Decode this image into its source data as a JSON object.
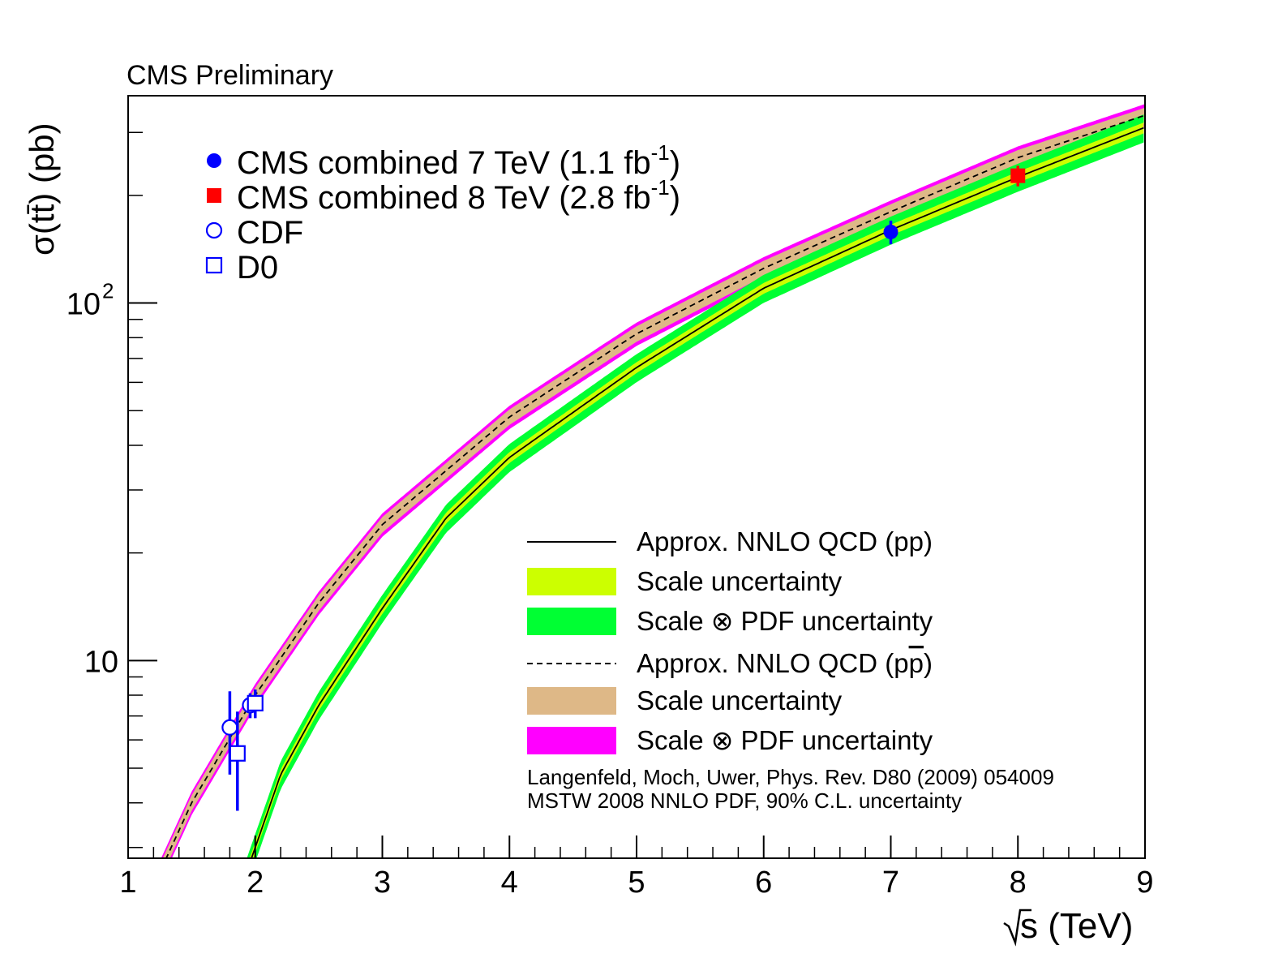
{
  "chart_data": {
    "type": "line",
    "title": "CMS Preliminary",
    "xlabel": "√s (TeV)",
    "ylabel": "σ(tt̄) (pb)",
    "xlim": [
      1,
      9
    ],
    "ylim": [
      2.8,
      380
    ],
    "yscale": "log",
    "x_ticks": [
      {
        "value": 1,
        "label": "1"
      },
      {
        "value": 2,
        "label": "2"
      },
      {
        "value": 3,
        "label": "3"
      },
      {
        "value": 4,
        "label": "4"
      },
      {
        "value": 5,
        "label": "5"
      },
      {
        "value": 6,
        "label": "6"
      },
      {
        "value": 7,
        "label": "7"
      },
      {
        "value": 8,
        "label": "8"
      },
      {
        "value": 9,
        "label": "9"
      }
    ],
    "y_ticks": [
      {
        "value": 10,
        "label": "10"
      },
      {
        "value": 100,
        "label": "10",
        "sup": "2"
      }
    ],
    "series": [
      {
        "name": "Approx. NNLO QCD (pp)",
        "style": "solid",
        "color": "#000000",
        "x": [
          2.0,
          2.2,
          2.5,
          3.0,
          3.5,
          4.0,
          5.0,
          6.0,
          7.0,
          8.0,
          9.0
        ],
        "y": [
          3.0,
          4.8,
          7.5,
          14.0,
          25.0,
          37.0,
          66.0,
          110.0,
          160.0,
          225.0,
          310.0
        ],
        "band_scale": 0.035,
        "band_pdf": 0.09
      },
      {
        "name": "Approx. NNLO QCD (pp̄)",
        "style": "dashed",
        "color": "#000000",
        "x": [
          1.3,
          1.5,
          2.0,
          2.5,
          3.0,
          4.0,
          5.0,
          6.0,
          7.0,
          8.0,
          9.0
        ],
        "y": [
          2.8,
          4.0,
          8.0,
          14.5,
          24.0,
          48.0,
          82.0,
          125.0,
          180.0,
          255.0,
          335.0
        ],
        "band_scale": 0.05,
        "band_pdf": 0.075
      }
    ],
    "points": [
      {
        "name": "CMS combined 7 TeV",
        "lumi": "1.1",
        "x": 7.0,
        "y": 158,
        "yerr": 12,
        "marker": "filled-circle",
        "color": "#0000ff"
      },
      {
        "name": "CMS combined 8 TeV",
        "lumi": "2.8",
        "x": 8.0,
        "y": 227,
        "yerr": 15,
        "marker": "filled-square",
        "color": "#ff0000"
      },
      {
        "name": "CDF",
        "x": 1.96,
        "y": 7.5,
        "yerr": 0.6,
        "marker": "open-circle",
        "color": "#0000ff"
      },
      {
        "name": "CDF",
        "x": 1.8,
        "y": 6.5,
        "yerr": 1.7,
        "marker": "open-circle",
        "color": "#0000ff"
      },
      {
        "name": "D0",
        "x": 2.0,
        "y": 7.6,
        "yerr": 0.7,
        "marker": "open-square",
        "color": "#0000ff"
      },
      {
        "name": "D0",
        "x": 1.86,
        "y": 5.5,
        "yerr": 1.7,
        "marker": "open-square",
        "color": "#0000ff"
      }
    ],
    "legend_markers": [
      {
        "label": "CMS combined 7 TeV (1.1 fb",
        "sup": "-1",
        "close": ")",
        "marker": "filled-circle",
        "color": "#0000ff"
      },
      {
        "label": "CMS combined 8 TeV (2.8 fb",
        "sup": "-1",
        "close": ")",
        "marker": "filled-square",
        "color": "#ff0000"
      },
      {
        "label": "CDF",
        "marker": "open-circle",
        "color": "#0000ff"
      },
      {
        "label": "D0",
        "marker": "open-square",
        "color": "#0000ff"
      }
    ],
    "legend_bands": [
      {
        "label": "Approx. NNLO QCD (pp)",
        "kind": "solid-line",
        "color": "#000000"
      },
      {
        "label": "Scale uncertainty",
        "kind": "fill",
        "color": "#ccff00"
      },
      {
        "label": "Scale ⊗ PDF uncertainty",
        "kind": "fill",
        "color": "#00ff33"
      },
      {
        "label": "Approx. NNLO QCD (p",
        "label_bar": "p",
        "label_close": ")",
        "kind": "dashed-line",
        "color": "#000000"
      },
      {
        "label": "Scale uncertainty",
        "kind": "fill",
        "color": "#deb887"
      },
      {
        "label": "Scale ⊗ PDF uncertainty",
        "kind": "fill",
        "color": "#ff00ff"
      }
    ],
    "annotations": [
      "Langenfeld, Moch, Uwer, Phys. Rev. D80 (2009) 054009",
      "MSTW 2008 NNLO PDF, 90% C.L. uncertainty"
    ]
  }
}
